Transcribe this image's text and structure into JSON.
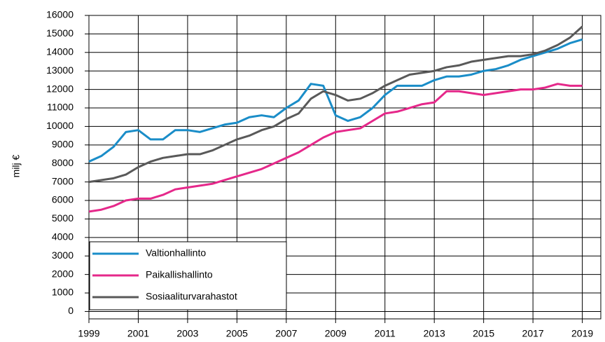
{
  "chart_data": {
    "type": "line",
    "y_label": "milj €",
    "x": [
      1999,
      1999.5,
      2000,
      2000.5,
      2001,
      2001.5,
      2002,
      2002.5,
      2003,
      2003.5,
      2004,
      2004.5,
      2005,
      2005.5,
      2006,
      2006.5,
      2007,
      2007.5,
      2008,
      2008.5,
      2009,
      2009.5,
      2010,
      2010.5,
      2011,
      2011.5,
      2012,
      2012.5,
      2013,
      2013.5,
      2014,
      2014.5,
      2015,
      2015.5,
      2016,
      2016.5,
      2017,
      2017.5,
      2018,
      2018.5,
      2019
    ],
    "series": [
      {
        "name": "Valtionhallinto",
        "color": "#1a8dc8",
        "values": [
          8100,
          8400,
          8900,
          9700,
          9800,
          9300,
          9300,
          9800,
          9800,
          9700,
          9900,
          10100,
          10200,
          10500,
          10600,
          10500,
          11000,
          11400,
          12300,
          12200,
          10600,
          10300,
          10500,
          11000,
          11700,
          12200,
          12200,
          12200,
          12500,
          12700,
          12700,
          12800,
          13000,
          13100,
          13300,
          13600,
          13800,
          14000,
          14200,
          14500,
          14700
        ]
      },
      {
        "name": "Paikallishallinto",
        "color": "#e5288a",
        "values": [
          5400,
          5500,
          5700,
          6000,
          6100,
          6100,
          6300,
          6600,
          6700,
          6800,
          6900,
          7100,
          7300,
          7500,
          7700,
          8000,
          8300,
          8600,
          9000,
          9400,
          9700,
          9800,
          9900,
          10300,
          10700,
          10800,
          11000,
          11200,
          11300,
          11900,
          11900,
          11800,
          11700,
          11800,
          11900,
          12000,
          12000,
          12100,
          12300,
          12200,
          12200
        ]
      },
      {
        "name": "Sosiaaliturvarahastot",
        "color": "#595959",
        "values": [
          7000,
          7100,
          7200,
          7400,
          7800,
          8100,
          8300,
          8400,
          8500,
          8500,
          8700,
          9000,
          9300,
          9500,
          9800,
          10000,
          10400,
          10700,
          11500,
          11900,
          11700,
          11400,
          11500,
          11800,
          12200,
          12500,
          12800,
          12900,
          13000,
          13200,
          13300,
          13500,
          13600,
          13700,
          13800,
          13800,
          13900,
          14100,
          14400,
          14800,
          15400
        ]
      }
    ],
    "xlim": [
      1999,
      2019.75
    ],
    "xticks": [
      1999,
      2001,
      2003,
      2005,
      2007,
      2009,
      2011,
      2013,
      2015,
      2017,
      2019
    ],
    "ylim": [
      -400,
      16000
    ],
    "yticks": [
      0,
      1000,
      2000,
      3000,
      4000,
      5000,
      6000,
      7000,
      8000,
      9000,
      10000,
      11000,
      12000,
      13000,
      14000,
      15000,
      16000
    ],
    "grid": true,
    "legend": "lower left"
  }
}
